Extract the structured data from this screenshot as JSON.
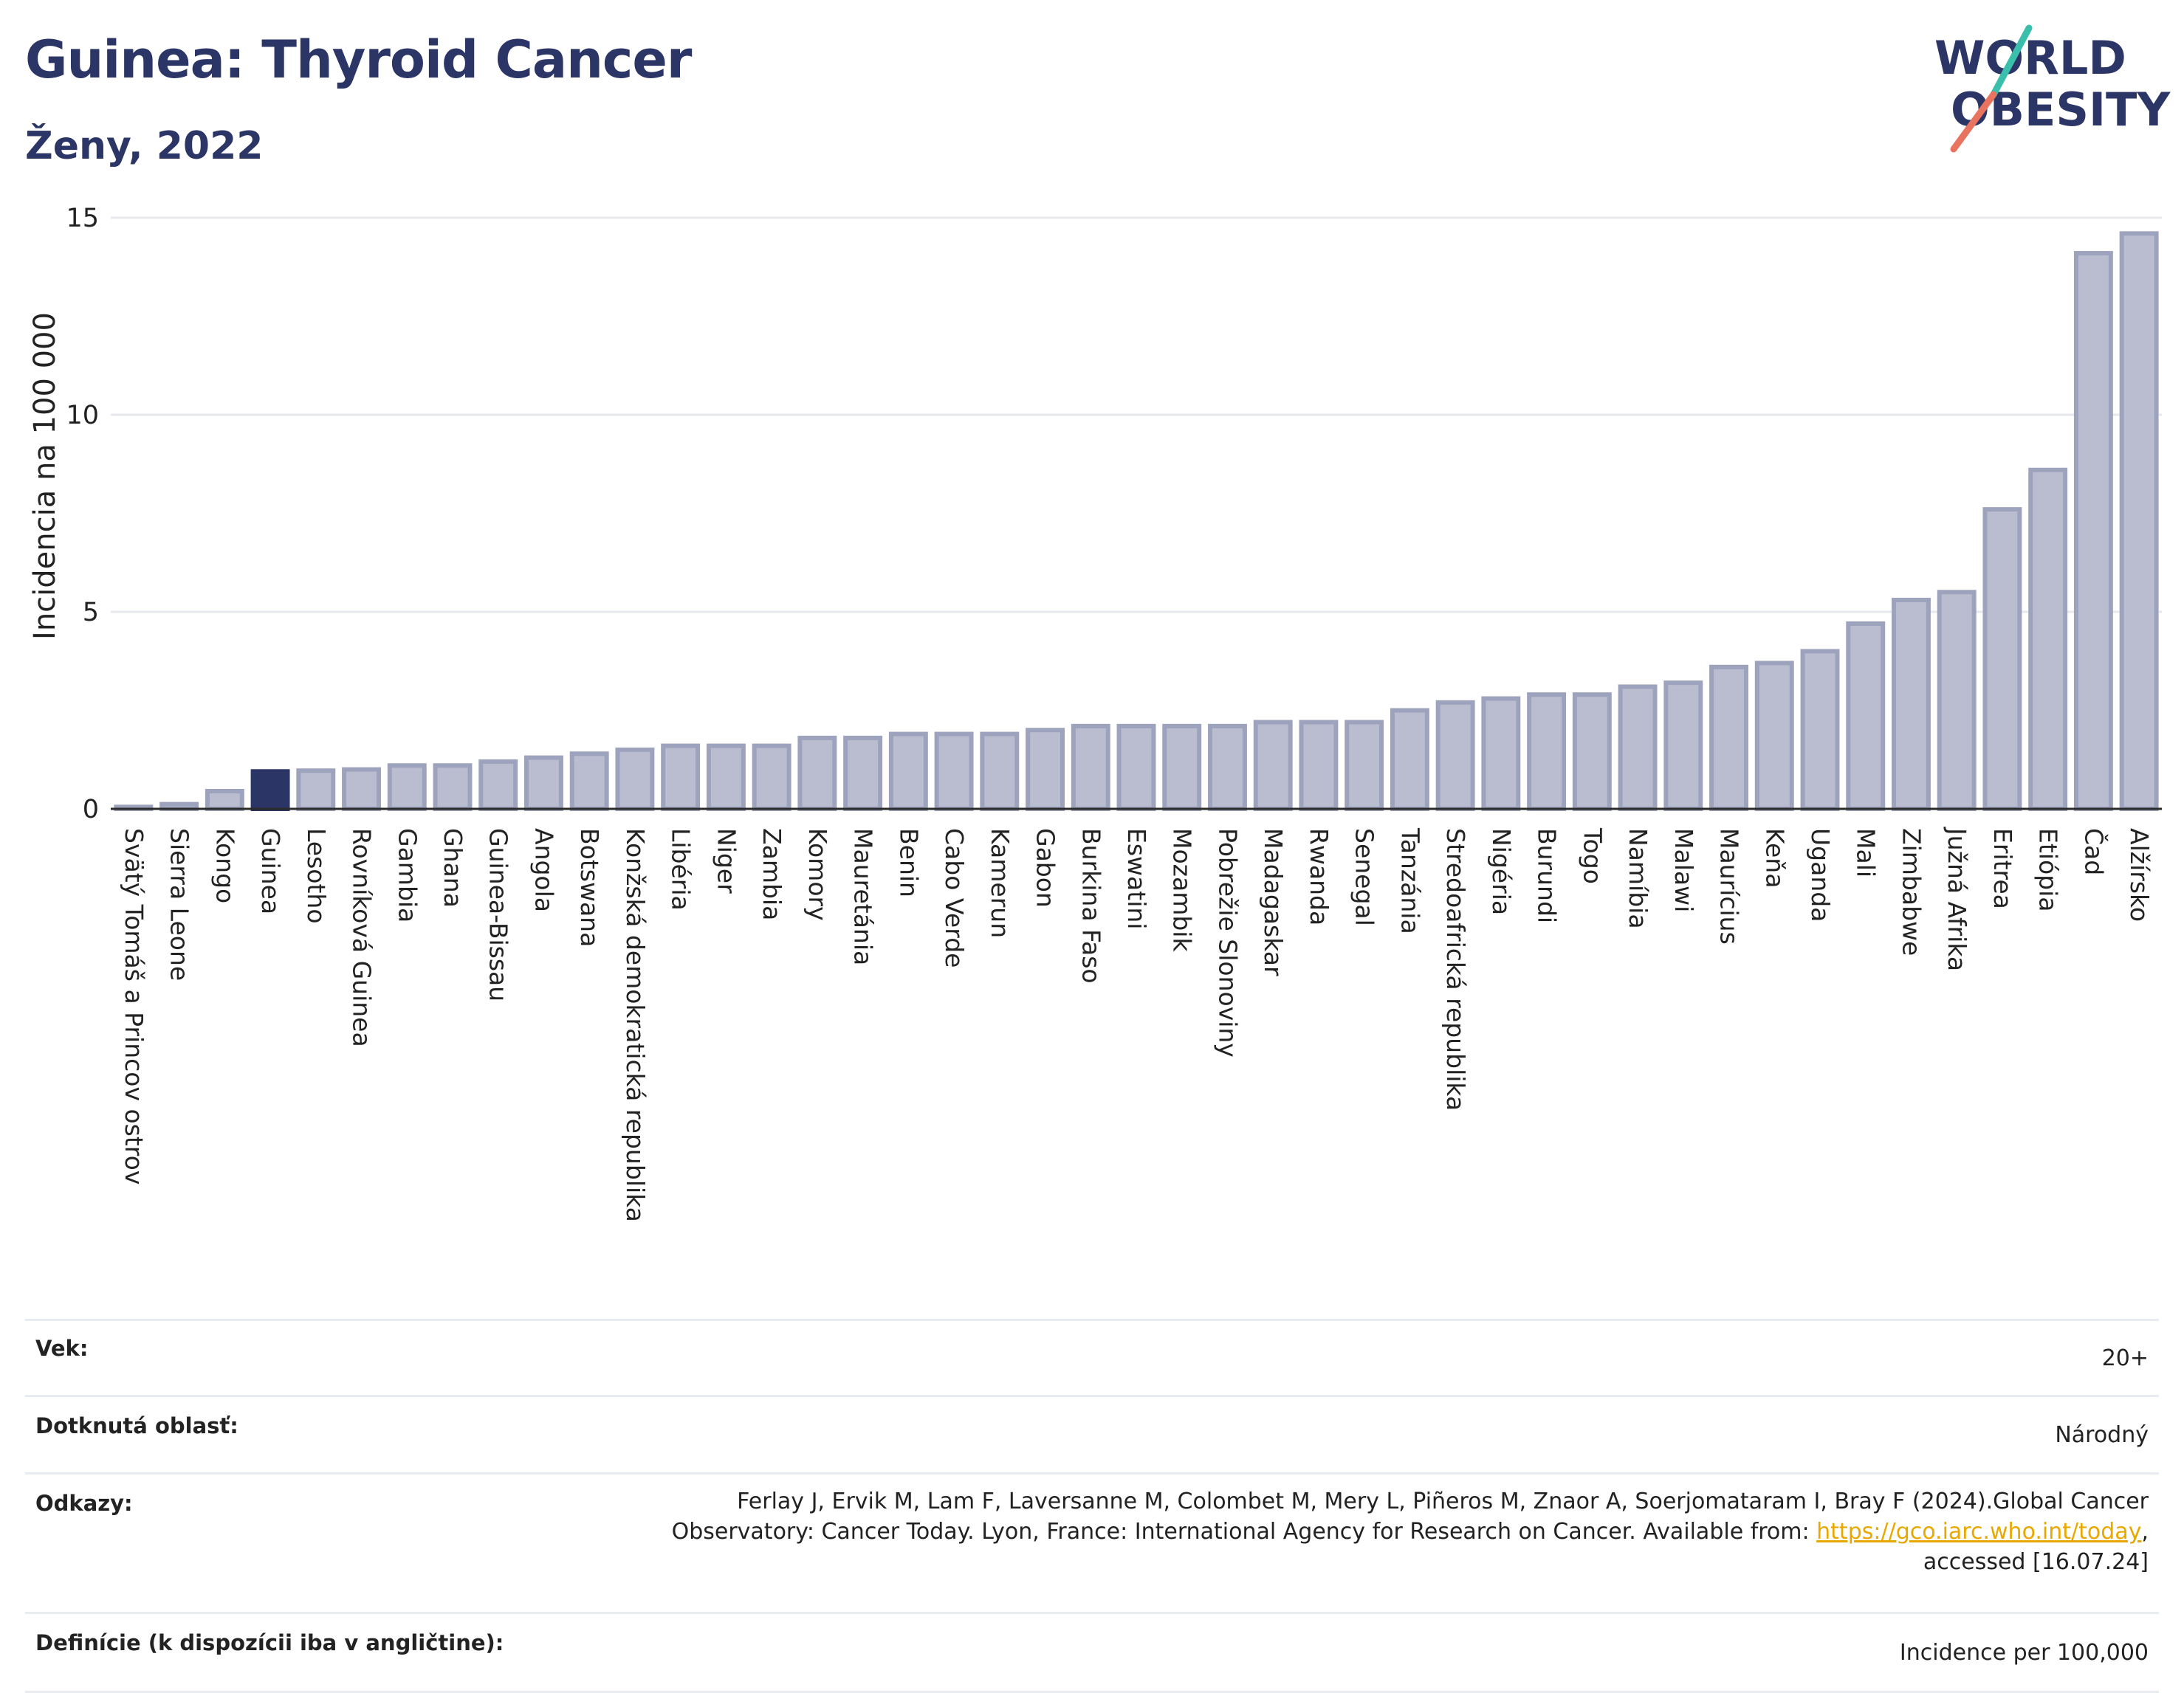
{
  "header": {
    "title": "Guinea: Thyroid Cancer",
    "subtitle": "Ženy, 2022",
    "logo_line1": "WORLD",
    "logo_line2": "OBESITY"
  },
  "colors": {
    "bar_fill": "#b9bdcf",
    "bar_stroke": "#9ea3bd",
    "highlight_fill": "#2b3566",
    "title": "#2b3566",
    "logo_teal": "#3bbfad",
    "logo_coral": "#e8735f",
    "link": "#e8a800"
  },
  "chart_data": {
    "type": "bar",
    "ylabel": "Incidencia na 100 000",
    "xlabel": "",
    "ylim": [
      0,
      15
    ],
    "yticks": [
      0,
      5,
      10,
      15
    ],
    "grid": true,
    "highlight": "Guinea",
    "categories": [
      "Svätý Tomáš a Princov ostrov",
      "Sierra Leone",
      "Kongo",
      "Guinea",
      "Lesotho",
      "Rovníková Guinea",
      "Gambia",
      "Ghana",
      "Guinea-Bissau",
      "Angola",
      "Botswana",
      "Konžská demokratická republika",
      "Libéria",
      "Niger",
      "Zambia",
      "Komory",
      "Mauretánia",
      "Benin",
      "Cabo Verde",
      "Kamerun",
      "Gabon",
      "Burkina Faso",
      "Eswatini",
      "Mozambik",
      "Pobrežie Slonoviny",
      "Madagaskar",
      "Rwanda",
      "Senegal",
      "Tanzánia",
      "Stredoafrická republika",
      "Nigéria",
      "Burundi",
      "Togo",
      "Namíbia",
      "Malawi",
      "Maurícius",
      "Keňa",
      "Uganda",
      "Mali",
      "Zimbabwe",
      "Južná Afrika",
      "Eritrea",
      "Etiópia",
      "Čad",
      "Alžírsko"
    ],
    "values": [
      0.05,
      0.12,
      0.45,
      0.95,
      0.97,
      1.0,
      1.1,
      1.1,
      1.2,
      1.3,
      1.4,
      1.5,
      1.6,
      1.6,
      1.6,
      1.8,
      1.8,
      1.9,
      1.9,
      1.9,
      2.0,
      2.1,
      2.1,
      2.1,
      2.1,
      2.2,
      2.2,
      2.2,
      2.5,
      2.7,
      2.8,
      2.9,
      2.9,
      3.1,
      3.2,
      3.6,
      3.7,
      4.0,
      4.7,
      5.3,
      5.5,
      7.6,
      8.6,
      14.1,
      14.6
    ]
  },
  "info": {
    "age_label": "Vek:",
    "age_value": "20+",
    "area_label": "Dotknutá oblasť:",
    "area_value": "Národný",
    "refs_label": "Odkazy:",
    "refs_line1": "Ferlay J, Ervik M, Lam F, Laversanne M, Colombet M, Mery L, Piñeros M, Znaor A, Soerjomataram I, Bray F (2024).Global Cancer",
    "refs_line2": "Observatory: Cancer Today. Lyon, France: International Agency for Research on Cancer. Available from: ",
    "refs_link": "https://gco.iarc.who.int/today",
    "refs_line2_end": ",",
    "refs_line3": "accessed [16.07.24]",
    "def_label": "Definície (k dispozícii iba v angličtine):",
    "def_value": "Incidence per 100,000"
  }
}
